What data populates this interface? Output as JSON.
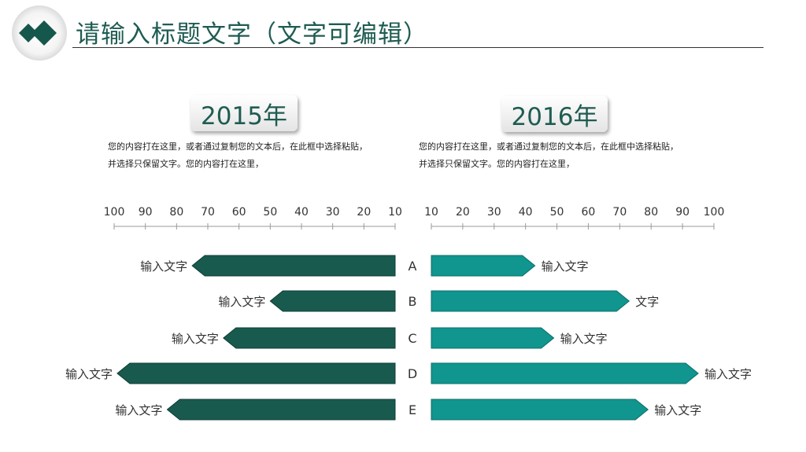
{
  "header": {
    "title": "请输入标题文字（文字可编辑）"
  },
  "panels": [
    {
      "year": "2015年",
      "desc_line1": "您的内容打在这里，或者通过复制您的文本后，在此框中选择粘贴，",
      "desc_line2": "并选择只保留文字。您的内容打在这里，"
    },
    {
      "year": "2016年",
      "desc_line1": "您的内容打在这里，或者通过复制您的文本后，在此框中选择粘贴，",
      "desc_line2": "并选择只保留文字。您的内容打在这里，"
    }
  ],
  "chart_data": {
    "type": "bar",
    "orientation": "horizontal-butterfly",
    "categories": [
      "A",
      "B",
      "C",
      "D",
      "E"
    ],
    "xlim": [
      10,
      100
    ],
    "ticks": [
      10,
      20,
      30,
      40,
      50,
      60,
      70,
      80,
      90,
      100
    ],
    "series": [
      {
        "name": "2015年",
        "side": "left",
        "color": "#195a4e",
        "values": [
          75,
          50,
          65,
          99,
          83
        ],
        "labels": [
          "输入文字",
          "输入文字",
          "输入文字",
          "输入文字",
          "输入文字"
        ]
      },
      {
        "name": "2016年",
        "side": "right",
        "color": "#10958f",
        "values": [
          43,
          73,
          49,
          95,
          79
        ],
        "labels": [
          "输入文字",
          "文字",
          "输入文字",
          "输入文字",
          "输入文字"
        ]
      }
    ]
  }
}
